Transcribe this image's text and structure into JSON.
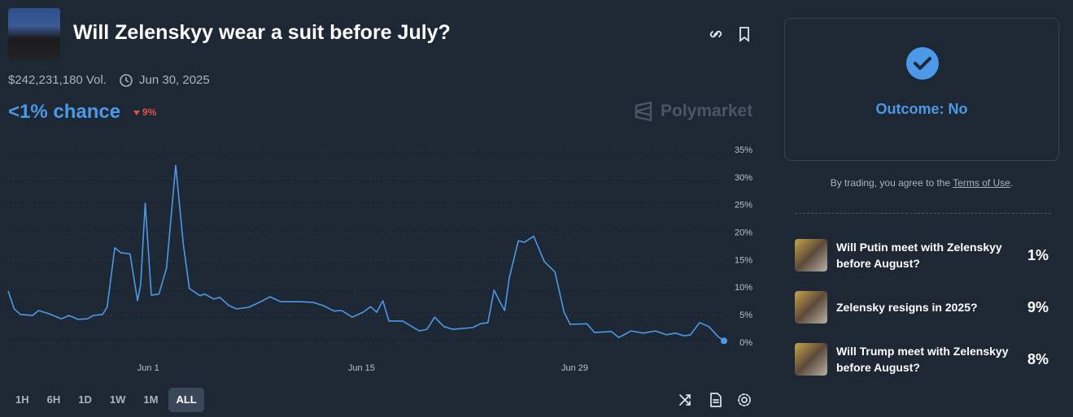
{
  "header": {
    "title": "Will Zelenskyy wear a suit before July?",
    "volume": "$242,231,180 Vol.",
    "end_date": "Jun 30, 2025",
    "chance": "<1% chance",
    "change": "9%",
    "brand": "Polymarket"
  },
  "chart_data": {
    "type": "line",
    "color": "#4a9ae8",
    "grid": true,
    "x": [
      -9.2,
      -8.8,
      -8.4,
      -7.6,
      -7.2,
      -6.5,
      -5.7,
      -5.2,
      -4.6,
      -4.0,
      -3.6,
      -3.0,
      -2.7,
      -2.2,
      -1.8,
      -1.2,
      -0.7,
      -0.5,
      -0.2,
      0.2,
      0.7,
      1.2,
      1.8,
      2.3,
      2.7,
      3.4,
      3.7,
      4.3,
      4.7,
      5.3,
      5.8,
      6.6,
      7.3,
      8.0,
      8.7,
      10.0,
      10.8,
      11.5,
      12.2,
      12.7,
      13.4,
      14.1,
      14.6,
      15.0,
      15.4,
      15.8,
      16.7,
      17.3,
      17.8,
      18.3,
      18.8,
      19.4,
      20.0,
      21.3,
      21.8,
      22.3,
      22.7,
      23.1,
      23.4,
      23.7,
      24.3,
      24.7,
      25.3,
      26.0,
      26.7,
      27.3,
      27.7,
      28.8,
      29.3,
      30.4,
      30.9,
      31.7,
      32.5,
      33.3,
      34.0,
      34.6,
      35.2,
      35.6,
      36.2,
      36.8,
      37.4,
      37.8
    ],
    "values": [
      9.5,
      6.2,
      5.2,
      5.0,
      5.9,
      5.3,
      4.4,
      5.0,
      4.3,
      4.4,
      5.0,
      5.2,
      6.5,
      17.3,
      16.4,
      16.2,
      7.7,
      10.6,
      25.4,
      8.7,
      8.9,
      13.6,
      32.3,
      18.0,
      9.9,
      8.6,
      8.9,
      8.0,
      8.3,
      6.8,
      6.2,
      6.5,
      7.4,
      8.4,
      7.5,
      7.5,
      7.4,
      6.8,
      5.8,
      5.9,
      4.7,
      5.6,
      6.6,
      5.6,
      7.7,
      4.0,
      4.0,
      3.0,
      2.2,
      2.5,
      4.7,
      3.0,
      2.5,
      2.8,
      3.5,
      3.7,
      9.6,
      7.4,
      5.9,
      11.8,
      18.6,
      18.3,
      19.4,
      14.8,
      12.9,
      5.6,
      3.4,
      3.5,
      1.9,
      2.1,
      1.0,
      2.2,
      1.8,
      2.2,
      1.5,
      1.8,
      1.3,
      1.5,
      3.7,
      3.0,
      1.2,
      0.4
    ],
    "xlim": [
      -9.2,
      37.8
    ],
    "xticks": [
      {
        "value": 0,
        "label": "Jun 1"
      },
      {
        "value": 14,
        "label": "Jun 15"
      },
      {
        "value": 28,
        "label": "Jun 29"
      }
    ],
    "ylim": [
      0,
      35
    ],
    "yticks": [
      {
        "value": 0,
        "label": "0%"
      },
      {
        "value": 5,
        "label": "5%"
      },
      {
        "value": 10,
        "label": "10%"
      },
      {
        "value": 15,
        "label": "15%"
      },
      {
        "value": 20,
        "label": "20%"
      },
      {
        "value": 25,
        "label": "25%"
      },
      {
        "value": 30,
        "label": "30%"
      },
      {
        "value": 35,
        "label": "35%"
      }
    ]
  },
  "ranges": [
    "1H",
    "6H",
    "1D",
    "1W",
    "1M",
    "ALL"
  ],
  "outcome": "Outcome: No",
  "terms": {
    "prefix": "By trading, you agree to the ",
    "link": "Terms of Use",
    "suffix": "."
  },
  "related": [
    {
      "title": "Will Putin meet with Zelenskyy before August?",
      "chance": "1%"
    },
    {
      "title": "Zelensky resigns in 2025?",
      "chance": "9%"
    },
    {
      "title": "Will Trump meet with Zelenskyy before August?",
      "chance": "8%"
    }
  ]
}
